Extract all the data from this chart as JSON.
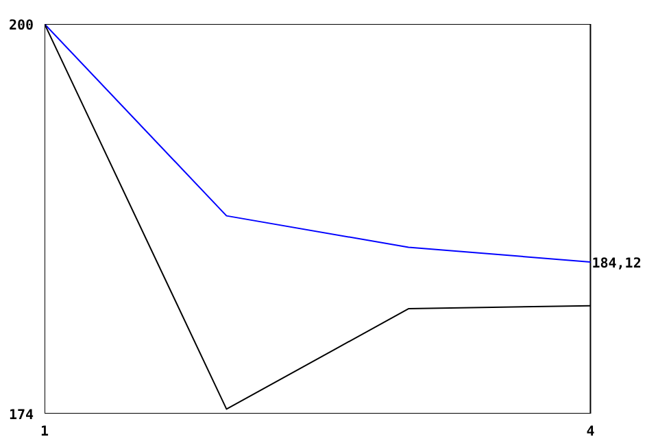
{
  "chart_data": {
    "type": "line",
    "x": [
      1,
      2,
      3,
      4
    ],
    "series": [
      {
        "color": "#0000ff",
        "values": [
          200,
          187.2,
          185.1,
          184.12
        ]
      },
      {
        "color": "#000000",
        "values": [
          200,
          174.3,
          181.0,
          181.2
        ]
      }
    ],
    "xlim": [
      1,
      4
    ],
    "ylim": [
      174,
      200
    ],
    "xticks": [
      1,
      4
    ],
    "yticks": [
      174,
      200
    ],
    "marker": "none",
    "line_style": "solid",
    "annotations": [
      {
        "text": "184,12",
        "x": 4,
        "y": 184.12
      }
    ]
  }
}
